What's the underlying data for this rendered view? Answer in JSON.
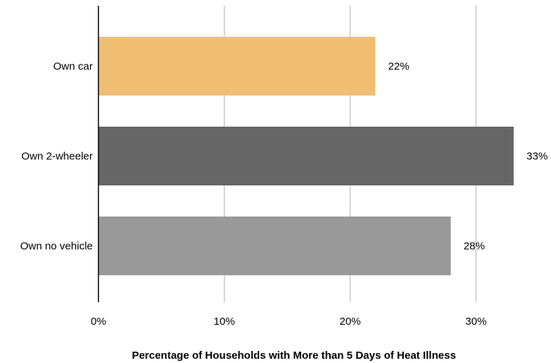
{
  "chart_data": {
    "type": "bar",
    "orientation": "horizontal",
    "categories": [
      "Own car",
      "Own 2-wheeler",
      "Own no vehicle"
    ],
    "values": [
      22,
      33,
      28
    ],
    "value_labels": [
      "22%",
      "33%",
      "28%"
    ],
    "bar_colors": [
      "#F0BE72",
      "#666666",
      "#999999"
    ],
    "xlabel": "Percentage of Households with More than 5 Days of Heat Illness",
    "ylabel": "",
    "xlim": [
      0,
      35
    ],
    "x_ticks": [
      0,
      10,
      20,
      30
    ],
    "x_tick_labels": [
      "0%",
      "10%",
      "20%",
      "30%"
    ],
    "grid": "vertical",
    "legend": "none"
  }
}
